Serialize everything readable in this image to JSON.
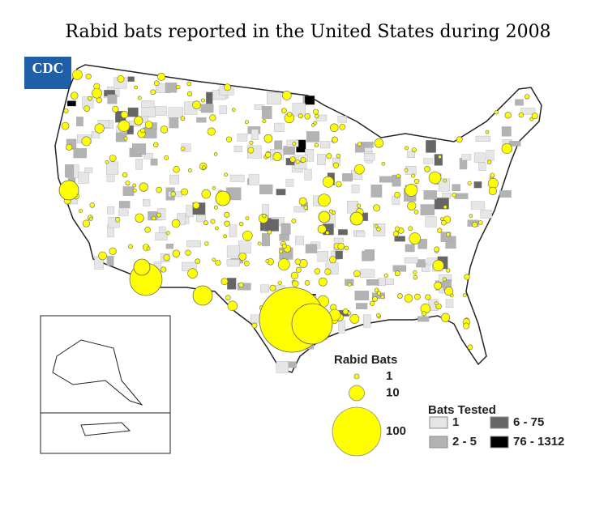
{
  "title": "Rabid bats reported in the United States during 2008",
  "logo": "CDC",
  "legend": {
    "rabid_bats": {
      "title": "Rabid Bats",
      "color": "#ffff00",
      "sizes": [
        1,
        10,
        100
      ]
    },
    "bats_tested": {
      "title": "Bats Tested",
      "items": [
        {
          "label": "1",
          "color": "#e6e6e6"
        },
        {
          "label": "2 - 5",
          "color": "#b3b3b3"
        },
        {
          "label": "6 - 75",
          "color": "#666666"
        },
        {
          "label": "76 - 1312",
          "color": "#000000"
        }
      ]
    }
  }
}
